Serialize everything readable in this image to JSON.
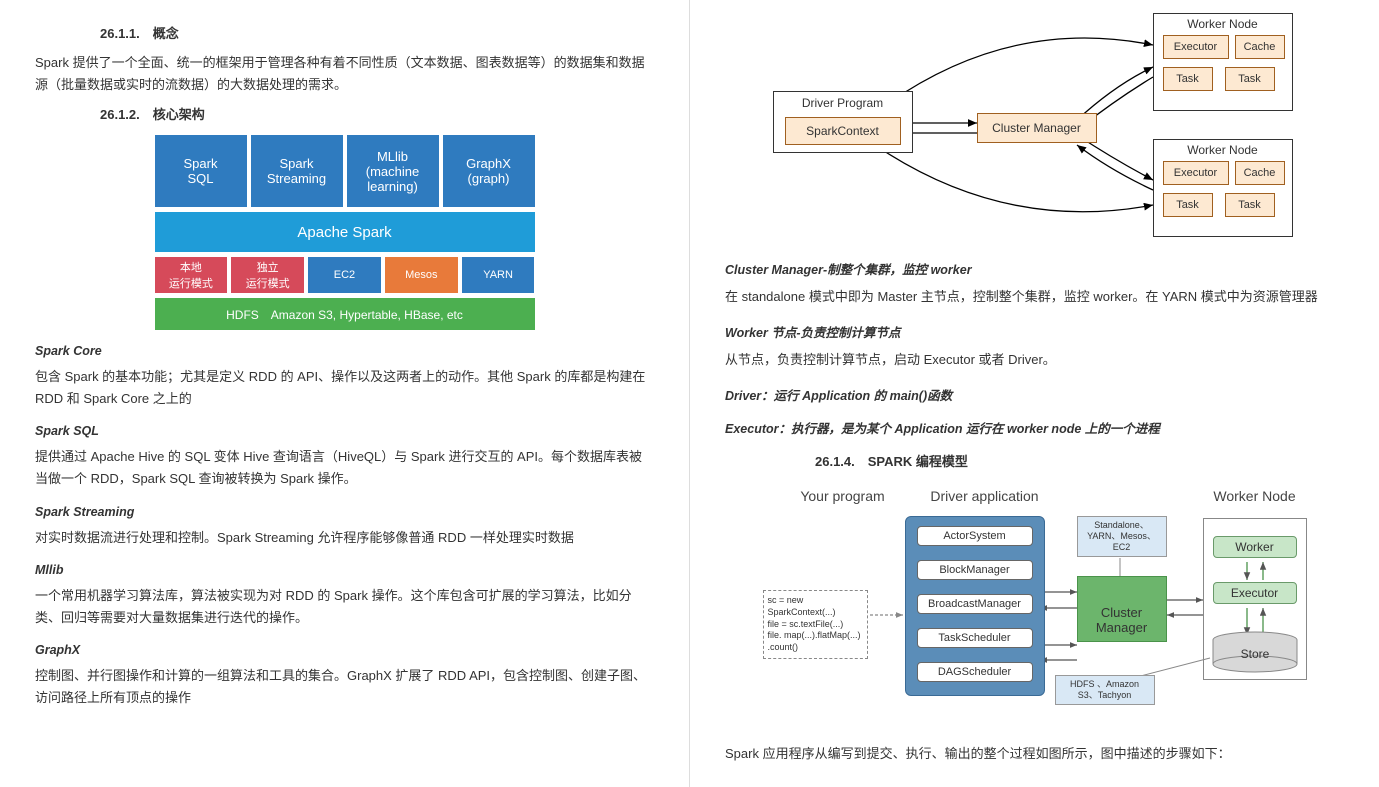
{
  "left": {
    "h1": "26.1.1.　概念",
    "p1": "Spark 提供了一个全面、统一的框架用于管理各种有着不同性质（文本数据、图表数据等）的数据集和数据源（批量数据或实时的流数据）的大数据处理的需求。",
    "h2": "26.1.2.　核心架构",
    "diag1": {
      "top": [
        {
          "l1": "Spark",
          "l2": "SQL",
          "color": "#2f7bbf"
        },
        {
          "l1": "Spark",
          "l2": "Streaming",
          "color": "#2f7bbf"
        },
        {
          "l1": "MLlib",
          "l2": "(machine",
          "l3": "learning)",
          "color": "#2f7bbf"
        },
        {
          "l1": "GraphX",
          "l2": "(graph)",
          "color": "#2f7bbf"
        }
      ],
      "spark": {
        "label": "Apache Spark",
        "color": "#1f9cd8"
      },
      "modes": [
        {
          "l1": "本地",
          "l2": "运行模式",
          "color": "#d64a5a"
        },
        {
          "l1": "独立",
          "l2": "运行模式",
          "color": "#d64a5a"
        },
        {
          "l1": "EC2",
          "color": "#2f7bbf"
        },
        {
          "l1": "Mesos",
          "color": "#e87a3a"
        },
        {
          "l1": "YARN",
          "color": "#2f7bbf"
        }
      ],
      "hdfs": {
        "label": "HDFS　Amazon S3, Hypertable, HBase, etc",
        "color": "#4caf50"
      }
    },
    "sections": [
      {
        "t": "Spark Core",
        "b": "包含 Spark 的基本功能；尤其是定义 RDD 的 API、操作以及这两者上的动作。其他 Spark 的库都是构建在 RDD 和 Spark Core 之上的"
      },
      {
        "t": "Spark SQL",
        "b": "提供通过 Apache Hive 的 SQL 变体 Hive 查询语言（HiveQL）与 Spark 进行交互的 API。每个数据库表被当做一个 RDD，Spark SQL 查询被转换为 Spark 操作。"
      },
      {
        "t": "Spark Streaming",
        "b": "对实时数据流进行处理和控制。Spark Streaming 允许程序能够像普通 RDD 一样处理实时数据"
      },
      {
        "t": "Mllib",
        "b": "一个常用机器学习算法库，算法被实现为对 RDD 的 Spark 操作。这个库包含可扩展的学习算法，比如分类、回归等需要对大量数据集进行迭代的操作。"
      },
      {
        "t": "GraphX",
        "b": "控制图、并行图操作和计算的一组算法和工具的集合。GraphX 扩展了 RDD API，包含控制图、创建子图、访问路径上所有顶点的操作"
      }
    ]
  },
  "right": {
    "diag2": {
      "driver_label": "Driver Program",
      "sc": "SparkContext",
      "cm": "Cluster Manager",
      "wn": "Worker Node",
      "exec": "Executor",
      "cache": "Cache",
      "task": "Task",
      "border_color": "#333333",
      "fill_color": "#fde9d2",
      "fill_border": "#b07030"
    },
    "bi1": "Cluster Manager-制整个集群，监控 worker",
    "p1": "在 standalone 模式中即为 Master 主节点，控制整个集群，监控 worker。在 YARN 模式中为资源管理器",
    "bi2": "Worker 节点-负责控制计算节点",
    "p2": "从节点，负责控制计算节点，启动 Executor 或者 Driver。",
    "bi3": "Driver：运行 Application 的 main()函数",
    "bi4": "Executor：执行器，是为某个 Application 运行在 worker node 上的一个进程",
    "h4": "26.1.4.　SPARK 编程模型",
    "diag3": {
      "titles": [
        "Your program",
        "Driver application",
        "Worker Node"
      ],
      "code": "sc = new SparkContext(...)\nfile = sc.textFile(...)\nfile. map(...).flatMap(...)\n .count()",
      "driver_items": [
        "ActorSystem",
        "BlockManager",
        "BroadcastManager",
        "TaskScheduler",
        "DAGScheduler"
      ],
      "note_top": "Standalone、\nYARN、Mesos、\nEC2",
      "cm": "Cluster\nManager",
      "note_bot": "HDFS 、Amazon\nS3、Tachyon",
      "wn_title": "Worker Node",
      "wn_items": [
        "Worker",
        "Executor",
        "Store"
      ],
      "colors": {
        "driver_bg": "#5b8db8",
        "cm_bg": "#6cb56c",
        "note_bg": "#d9e8f5",
        "wbox_bg": "#c8e6c8",
        "store_bg": "#d0d0d0"
      }
    },
    "p_end": "Spark 应用程序从编写到提交、执行、输出的整个过程如图所示，图中描述的步骤如下："
  }
}
